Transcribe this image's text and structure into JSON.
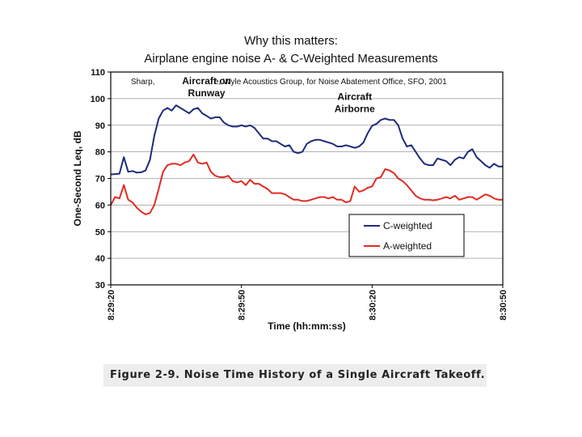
{
  "slide": {
    "title_line1": "Why this matters:",
    "title_line2": "Airplane engine noise A- & C-Weighted Measurements",
    "credit_left": "Sharp,",
    "credit_right": "e, Wyle Acoustics Group, for Noise Abatement Office, SFO, 2001"
  },
  "figure_caption": "Figure 2-9. Noise Time History of a Single Aircraft Takeoff.",
  "chart_data": {
    "type": "line",
    "xlabel": "Time (hh:mm:ss)",
    "ylabel": "One-Second Leq, dB",
    "ylim": [
      30,
      110
    ],
    "y_ticks": [
      30,
      40,
      50,
      60,
      70,
      80,
      90,
      100,
      110
    ],
    "xlim": [
      0,
      90
    ],
    "x_tick_values": [
      0,
      30,
      60,
      90
    ],
    "x_tick_labels": [
      "8:29:20",
      "8:29:50",
      "8:30:20",
      "8:30:50"
    ],
    "x_note": "x values are seconds after 8:29:20",
    "grid": "horizontal",
    "legend_position": "bottom-right",
    "annotations": [
      {
        "lines": [
          "Aircraft on",
          "Runway"
        ],
        "x": 22,
        "y": 105.5
      },
      {
        "lines": [
          "Aircraft",
          "Airborne"
        ],
        "x": 56,
        "y": 99.5
      }
    ],
    "series": [
      {
        "name": "C-weighted",
        "color": "#1f2a7a",
        "x": [
          0,
          2,
          3,
          4,
          5,
          6,
          7,
          8,
          9,
          10,
          11,
          12,
          13,
          14,
          15,
          16,
          17,
          18,
          19,
          20,
          21,
          22,
          23,
          24,
          25,
          26,
          27,
          28,
          29,
          30,
          31,
          32,
          33,
          34,
          35,
          36,
          37,
          38,
          39,
          40,
          41,
          42,
          43,
          44,
          45,
          46,
          47,
          48,
          49,
          50,
          51,
          52,
          53,
          54,
          55,
          56,
          57,
          58,
          59,
          60,
          61,
          62,
          63,
          64,
          65,
          66,
          67,
          68,
          69,
          70,
          71,
          72,
          73,
          74,
          75,
          76,
          77,
          78,
          79,
          80,
          81,
          82,
          83,
          84,
          85,
          86,
          87,
          88,
          89,
          90
        ],
        "y": [
          71.5,
          71.8,
          78,
          72.5,
          72.8,
          72.2,
          72.3,
          73,
          77,
          86,
          92.5,
          95.5,
          96.5,
          95.5,
          97.5,
          96.5,
          95.5,
          94.5,
          96,
          96.5,
          94.5,
          93.5,
          92.5,
          93,
          93,
          91,
          90,
          89.5,
          89.5,
          90,
          89.5,
          90,
          89,
          87,
          85,
          85,
          84,
          84,
          83,
          82,
          82.5,
          80,
          79.5,
          80,
          83,
          84,
          84.5,
          84.5,
          84,
          83.5,
          83,
          82,
          82,
          82.5,
          82,
          81.5,
          82,
          83.5,
          87,
          89.8,
          90.5,
          92,
          92.5,
          92,
          92,
          90,
          85,
          82,
          82.5,
          80,
          77.5,
          75.5,
          75,
          75,
          77.5,
          77,
          76.5,
          75,
          77,
          78,
          77.5,
          80,
          81,
          78,
          76.5,
          75,
          74,
          75.5,
          74.5,
          74.5
        ]
      },
      {
        "name": "A-weighted",
        "color": "#e32a22",
        "x": [
          0,
          1,
          2,
          3,
          4,
          5,
          6,
          7,
          8,
          9,
          10,
          11,
          12,
          13,
          14,
          15,
          16,
          17,
          18,
          19,
          20,
          21,
          22,
          23,
          24,
          25,
          26,
          27,
          28,
          29,
          30,
          31,
          32,
          33,
          34,
          35,
          36,
          37,
          38,
          39,
          40,
          41,
          42,
          43,
          44,
          45,
          46,
          47,
          48,
          49,
          50,
          51,
          52,
          53,
          54,
          55,
          56,
          57,
          58,
          59,
          60,
          61,
          62,
          63,
          64,
          65,
          66,
          67,
          68,
          69,
          70,
          71,
          72,
          73,
          74,
          75,
          76,
          77,
          78,
          79,
          80,
          81,
          82,
          83,
          84,
          85,
          86,
          87,
          88,
          89,
          90
        ],
        "y": [
          60,
          63,
          62.5,
          67.5,
          62,
          61,
          59,
          57.5,
          56.5,
          57,
          60,
          66,
          72.5,
          75,
          75.5,
          75.5,
          75,
          76,
          76.5,
          79,
          76,
          75.5,
          76,
          72.5,
          71,
          70.5,
          70.5,
          71,
          69,
          68.5,
          69,
          67.5,
          69.5,
          68,
          68,
          67,
          66,
          64.5,
          64.5,
          64.5,
          64,
          63,
          62,
          62,
          61.5,
          61.5,
          62,
          62.5,
          63,
          63,
          62.5,
          63,
          62,
          62,
          61,
          61.5,
          67,
          65,
          65.5,
          66.5,
          67,
          70,
          70.5,
          73.5,
          73,
          72,
          70,
          69,
          67.5,
          65.5,
          63.5,
          62.5,
          62,
          62,
          61.8,
          62,
          62.5,
          63,
          62.5,
          63.5,
          62,
          62.5,
          63,
          63,
          62,
          63,
          64,
          63.5,
          62.5,
          62,
          62
        ]
      }
    ]
  }
}
